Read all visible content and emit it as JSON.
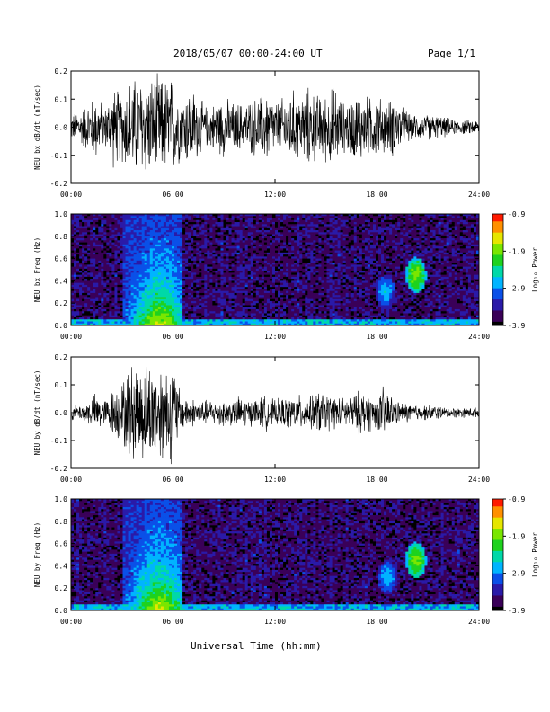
{
  "header": {
    "title": "2018/05/07  00:00-24:00 UT",
    "page_label": "Page 1/1"
  },
  "footer": {
    "xlabel": "Universal Time (hh:mm)"
  },
  "colors": {
    "trace": "#000000",
    "colormap": [
      "#000000",
      "#3a0058",
      "#2a1aa8",
      "#0a50e8",
      "#00b4ff",
      "#00d8a8",
      "#1ed21e",
      "#7ae600",
      "#e6e600",
      "#ff9000",
      "#ff1a00"
    ]
  },
  "chart_data": [
    {
      "type": "line",
      "id": "bx-dbdt",
      "ylabel": "NEU bx dB/dt (nT/sec)",
      "xlabel": "",
      "x_ticks": [
        "00:00",
        "06:00",
        "12:00",
        "18:00",
        "24:00"
      ],
      "xlim": [
        0,
        24
      ],
      "ylim": [
        -0.2,
        0.2
      ],
      "y_ticks": [
        "-0.2",
        "-0.1",
        "0.0",
        "0.1",
        "0.2"
      ],
      "envelope": {
        "x": [
          0,
          0.5,
          1,
          1.5,
          2,
          2.5,
          3,
          3.5,
          4,
          4.5,
          5,
          5.5,
          6,
          6.5,
          7,
          7.5,
          8,
          8.5,
          9,
          9.5,
          10,
          10.5,
          11,
          11.5,
          12,
          12.5,
          13,
          13.5,
          14,
          14.5,
          15,
          15.5,
          16,
          16.5,
          17,
          17.5,
          18,
          18.5,
          19,
          19.5,
          20,
          20.5,
          21,
          21.5,
          22,
          22.5,
          23,
          23.5,
          24
        ],
        "amplitude": [
          0.05,
          0.07,
          0.1,
          0.13,
          0.08,
          0.16,
          0.14,
          0.2,
          0.2,
          0.2,
          0.2,
          0.2,
          0.2,
          0.12,
          0.17,
          0.12,
          0.08,
          0.1,
          0.12,
          0.1,
          0.1,
          0.11,
          0.12,
          0.15,
          0.1,
          0.12,
          0.15,
          0.13,
          0.16,
          0.13,
          0.14,
          0.17,
          0.1,
          0.12,
          0.14,
          0.12,
          0.13,
          0.1,
          0.12,
          0.08,
          0.06,
          0.05,
          0.05,
          0.05,
          0.04,
          0.03,
          0.03,
          0.03,
          0.03
        ]
      }
    },
    {
      "type": "heatmap",
      "id": "bx-spectrogram",
      "ylabel": "NEU bx Freq (Hz)",
      "x_ticks": [
        "00:00",
        "06:00",
        "12:00",
        "18:00",
        "24:00"
      ],
      "xlim": [
        0,
        24
      ],
      "ylim": [
        0,
        1.0
      ],
      "y_ticks": [
        "0.0",
        "0.2",
        "0.4",
        "0.6",
        "0.8",
        "1.0"
      ],
      "colorbar": {
        "label": "Log₁₀ Power",
        "ticks": [
          "-0.9",
          "-1.9",
          "-2.9",
          "-3.9"
        ],
        "range": [
          -3.9,
          -0.9
        ]
      },
      "features": [
        {
          "name": "storm-band",
          "t_range": [
            3.0,
            6.6
          ],
          "f_range": [
            0,
            1.0
          ],
          "level": [
            -3.3,
            -1.6
          ]
        },
        {
          "name": "low-freq-floor",
          "t_range": [
            0,
            24
          ],
          "f_range": [
            0,
            0.05
          ],
          "level": [
            -3.0,
            -2.4
          ]
        },
        {
          "name": "blob-1",
          "t_center": 18.5,
          "f_center": 0.3,
          "level": -2.8
        },
        {
          "name": "blob-2",
          "t_center": 20.3,
          "f_center": 0.45,
          "level": -2.0
        }
      ]
    },
    {
      "type": "line",
      "id": "by-dbdt",
      "ylabel": "NEU by dB/dt (nT/sec)",
      "x_ticks": [
        "00:00",
        "06:00",
        "12:00",
        "18:00",
        "24:00"
      ],
      "xlim": [
        0,
        24
      ],
      "ylim": [
        -0.2,
        0.2
      ],
      "y_ticks": [
        "-0.2",
        "-0.1",
        "0.0",
        "0.1",
        "0.2"
      ],
      "envelope": {
        "x": [
          0,
          0.5,
          1,
          1.5,
          2,
          2.5,
          3,
          3.5,
          4,
          4.5,
          5,
          5.5,
          6,
          6.5,
          7,
          7.5,
          8,
          8.5,
          9,
          9.5,
          10,
          10.5,
          11,
          11.5,
          12,
          12.5,
          13,
          13.5,
          14,
          14.5,
          15,
          15.5,
          16,
          16.5,
          17,
          17.5,
          18,
          18.5,
          19,
          19.5,
          20,
          20.5,
          21,
          21.5,
          22,
          22.5,
          23,
          23.5,
          24
        ],
        "amplitude": [
          0.03,
          0.03,
          0.05,
          0.08,
          0.05,
          0.1,
          0.12,
          0.2,
          0.2,
          0.2,
          0.2,
          0.2,
          0.2,
          0.07,
          0.06,
          0.05,
          0.05,
          0.05,
          0.06,
          0.05,
          0.07,
          0.05,
          0.06,
          0.07,
          0.05,
          0.06,
          0.07,
          0.07,
          0.06,
          0.09,
          0.08,
          0.07,
          0.06,
          0.07,
          0.09,
          0.08,
          0.06,
          0.12,
          0.05,
          0.04,
          0.04,
          0.03,
          0.03,
          0.03,
          0.02,
          0.02,
          0.02,
          0.02,
          0.02
        ]
      }
    },
    {
      "type": "heatmap",
      "id": "by-spectrogram",
      "ylabel": "NEU by Freq (Hz)",
      "x_ticks": [
        "00:00",
        "06:00",
        "12:00",
        "18:00",
        "24:00"
      ],
      "xlim": [
        0,
        24
      ],
      "ylim": [
        0,
        1.0
      ],
      "y_ticks": [
        "0.0",
        "0.2",
        "0.4",
        "0.6",
        "0.8",
        "1.0"
      ],
      "colorbar": {
        "label": "Log₁₀ Power",
        "ticks": [
          "-0.9",
          "-1.9",
          "-2.9",
          "-3.9"
        ],
        "range": [
          -3.9,
          -0.9
        ]
      },
      "features": [
        {
          "name": "storm-band",
          "t_range": [
            3.0,
            6.6
          ],
          "f_range": [
            0,
            1.0
          ],
          "level": [
            -3.3,
            -1.6
          ]
        },
        {
          "name": "low-freq-floor",
          "t_range": [
            0,
            24
          ],
          "f_range": [
            0,
            0.05
          ],
          "level": [
            -3.0,
            -2.4
          ]
        },
        {
          "name": "blob-1",
          "t_center": 18.6,
          "f_center": 0.3,
          "level": -2.8
        },
        {
          "name": "blob-2",
          "t_center": 20.3,
          "f_center": 0.45,
          "level": -2.0
        }
      ]
    }
  ]
}
